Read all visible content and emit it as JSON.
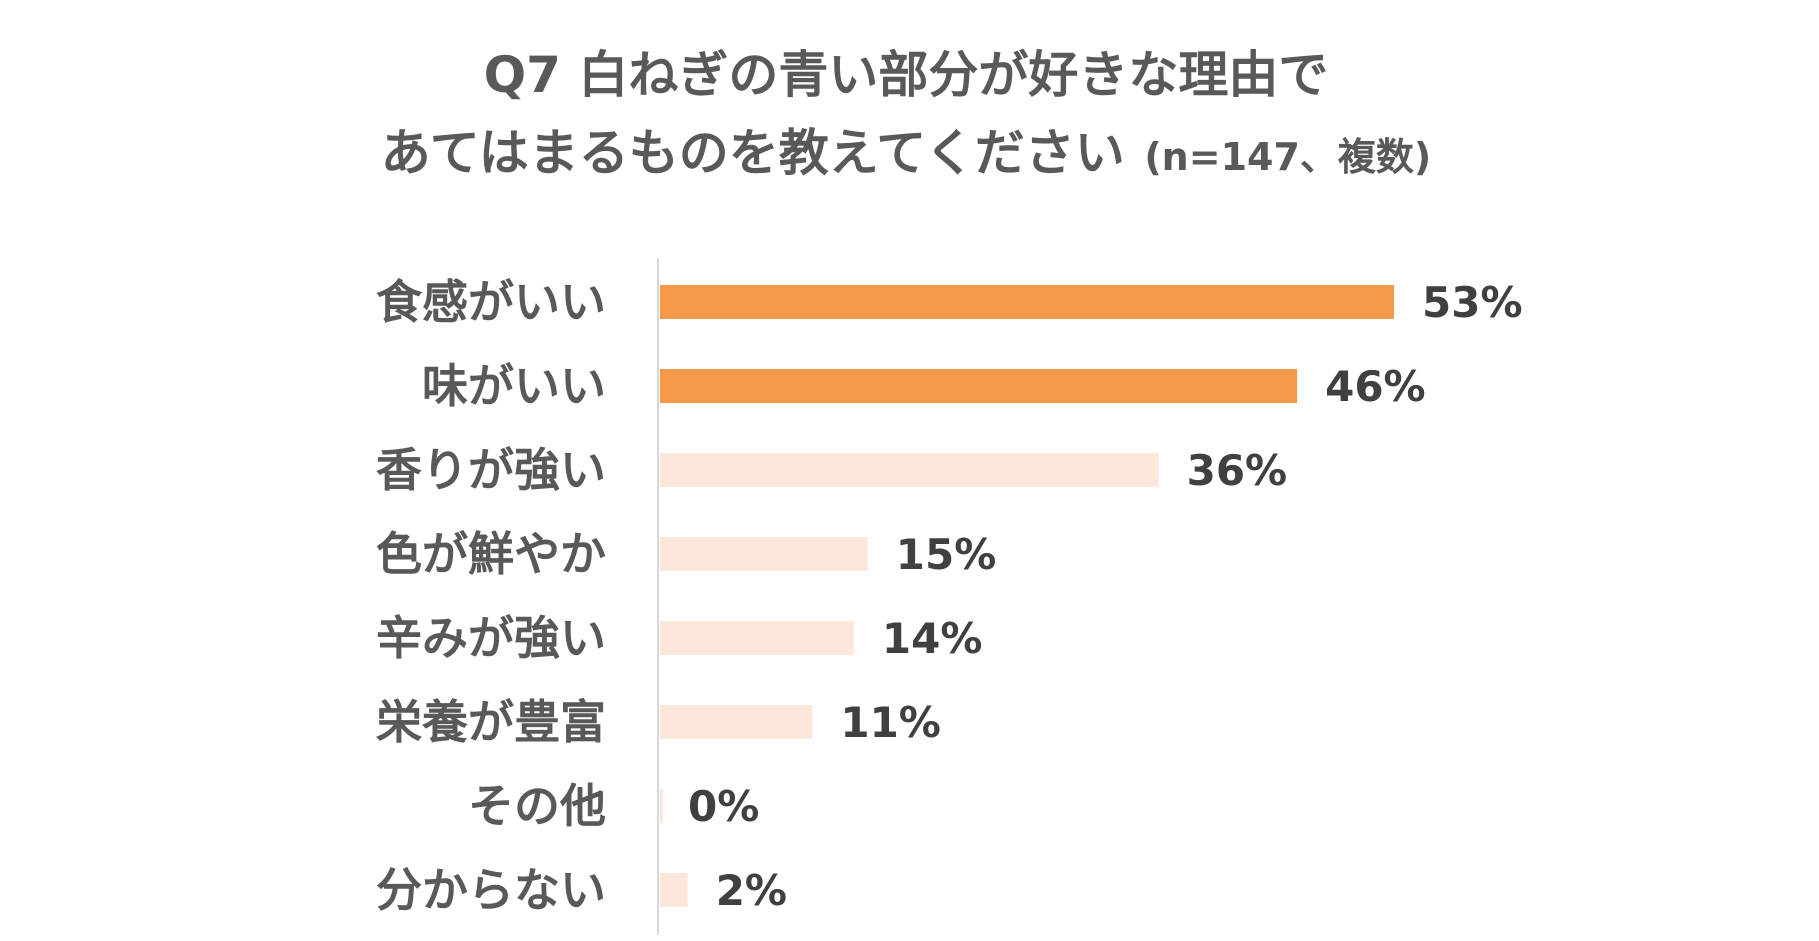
{
  "chart_data": {
    "type": "bar",
    "orientation": "horizontal",
    "title_line1": "Q7 白ねぎの青い部分が好きな理由で",
    "title_line2_main": "あてはまるものを教えてください",
    "title_line2_note": "(n=147、複数)",
    "categories": [
      "食感がいい",
      "味がいい",
      "香りが強い",
      "色が鮮やか",
      "辛みが強い",
      "栄養が豊富",
      "その他",
      "分からない"
    ],
    "values": [
      53,
      46,
      36,
      15,
      14,
      11,
      0,
      2
    ],
    "value_labels": [
      "53%",
      "46%",
      "36%",
      "15%",
      "14%",
      "11%",
      "0%",
      "2%"
    ],
    "highlighted": [
      true,
      true,
      false,
      false,
      false,
      false,
      false,
      false
    ],
    "xlim": [
      0,
      60
    ],
    "grid": false,
    "legend": "none",
    "colors": {
      "highlight": "#F5994A",
      "normal": "#FCE7DA",
      "axis": "#D9D9D9",
      "title": "#595959",
      "label": "#595959",
      "value": "#404040"
    }
  }
}
